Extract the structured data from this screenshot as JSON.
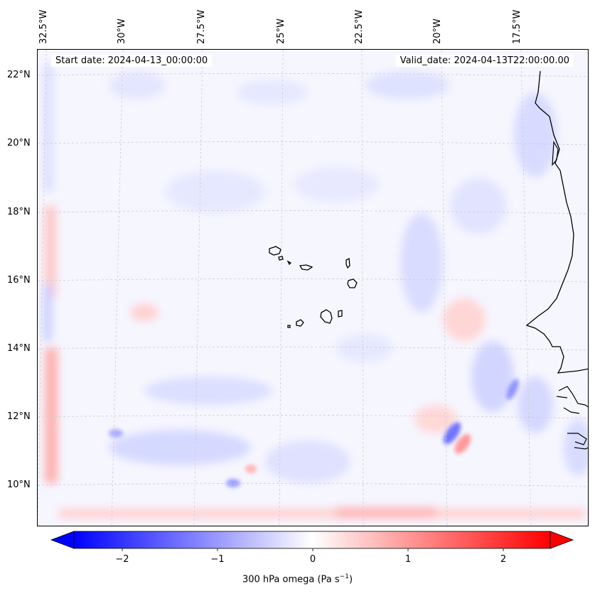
{
  "map": {
    "start_date": "Start date: 2024-04-13_00:00:00",
    "valid_date": "Valid_date: 2024-04-13T22:00:00.00",
    "lon_labels": [
      "32.5°W",
      "30°W",
      "27.5°W",
      "25°W",
      "22.5°W",
      "20°W",
      "17.5°W"
    ],
    "lat_labels": [
      "22°N",
      "20°N",
      "18°N",
      "16°N",
      "14°N",
      "12°N",
      "10°N"
    ],
    "colorbar": {
      "ticks": [
        "−2",
        "−1",
        "0",
        "1",
        "2"
      ],
      "label": "300 hPa omega (Pa s",
      "label_sup": "−1",
      "label_end": ")",
      "min_color": "#0000ff",
      "mid_color": "#ffffff",
      "max_color": "#ff0000"
    }
  }
}
